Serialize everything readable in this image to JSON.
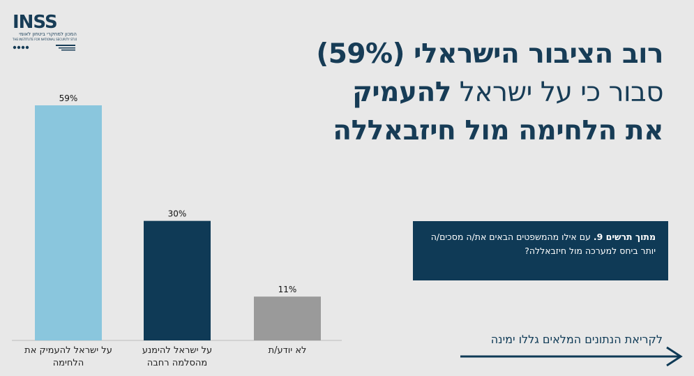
{
  "logo": {
    "wordmark": "INSS",
    "subtitle_he": "המכון למחקרי ביטחון לאומי",
    "subtitle_en": "THE INSTITUTE FOR NATIONAL SECURITY STUDIES"
  },
  "headline": {
    "line1": "רוב הציבור הישראלי (59%)",
    "line2_light": "סבור כי על ישראל ",
    "line2_bold": "להעמיק",
    "line3": "את הלחימה מול חיזבאללה"
  },
  "question": {
    "prefix_bold": "מתוך תרשים 9.",
    "text": " עם אילו מהמשפטים הבאים את/ה מסכים/ה יותר ביחס למערכה מול חיזבאללה?"
  },
  "cta": {
    "label": "לקריאת הנתונים המלאים גללו ימינה"
  },
  "colors": {
    "background": "#e8e8e8",
    "navy": "#0f3a56",
    "light_blue": "#8ac6dd",
    "gray": "#9a9a9a"
  },
  "chart_data": {
    "type": "bar",
    "categories": [
      "על ישראל להעמיק את הלחימה",
      "על ישראל להימנע מהסלמה רחבה",
      "לא יודע/ת"
    ],
    "values": [
      59,
      30,
      11
    ],
    "value_labels": [
      "59%",
      "30%",
      "11%"
    ],
    "bar_colors": [
      "#8ac6dd",
      "#0f3a56",
      "#9a9a9a"
    ],
    "ylim": [
      0,
      59
    ],
    "grid": false,
    "title": "",
    "xlabel": "",
    "ylabel": ""
  }
}
